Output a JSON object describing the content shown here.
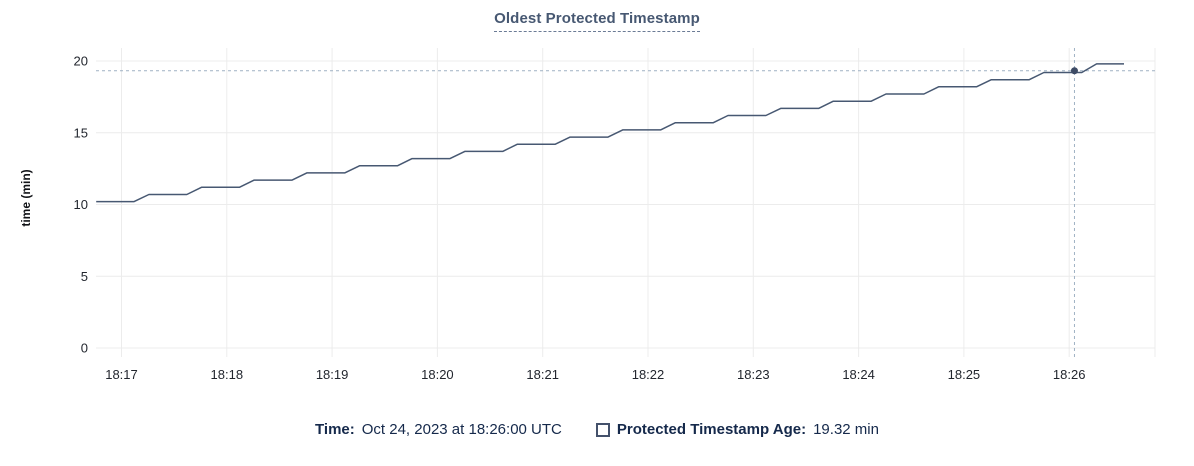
{
  "header": {
    "title": "Oldest Protected Timestamp"
  },
  "chart_data": {
    "type": "line",
    "title": "Oldest Protected Timestamp",
    "xlabel": "",
    "ylabel": "time (min)",
    "ylim": [
      0,
      20
    ],
    "yticks": [
      0,
      5,
      10,
      15,
      20
    ],
    "xtick_labels": [
      "18:17",
      "18:18",
      "18:19",
      "18:20",
      "18:21",
      "18:22",
      "18:23",
      "18:24",
      "18:25",
      "18:26"
    ],
    "grid": true,
    "legend_position": "bottom",
    "series": [
      {
        "name": "Protected Timestamp Age",
        "points_minutes_vs_min": [
          [
            -0.24,
            10.2
          ],
          [
            0.12,
            10.2
          ],
          [
            0.26,
            10.7
          ],
          [
            0.62,
            10.7
          ],
          [
            0.76,
            11.2
          ],
          [
            1.12,
            11.2
          ],
          [
            1.26,
            11.7
          ],
          [
            1.62,
            11.7
          ],
          [
            1.76,
            12.2
          ],
          [
            2.12,
            12.2
          ],
          [
            2.26,
            12.7
          ],
          [
            2.62,
            12.7
          ],
          [
            2.76,
            13.2
          ],
          [
            3.12,
            13.2
          ],
          [
            3.26,
            13.7
          ],
          [
            3.62,
            13.7
          ],
          [
            3.76,
            14.2
          ],
          [
            4.12,
            14.2
          ],
          [
            4.26,
            14.7
          ],
          [
            4.62,
            14.7
          ],
          [
            4.76,
            15.2
          ],
          [
            5.12,
            15.2
          ],
          [
            5.26,
            15.7
          ],
          [
            5.62,
            15.7
          ],
          [
            5.76,
            16.2
          ],
          [
            6.12,
            16.2
          ],
          [
            6.26,
            16.7
          ],
          [
            6.62,
            16.7
          ],
          [
            6.76,
            17.2
          ],
          [
            7.12,
            17.2
          ],
          [
            7.26,
            17.7
          ],
          [
            7.62,
            17.7
          ],
          [
            7.76,
            18.2
          ],
          [
            8.12,
            18.2
          ],
          [
            8.26,
            18.7
          ],
          [
            8.62,
            18.7
          ],
          [
            8.76,
            19.2
          ],
          [
            9.12,
            19.2
          ],
          [
            9.26,
            19.8
          ],
          [
            9.52,
            19.8
          ]
        ]
      }
    ],
    "hover_point": {
      "x_minutes": 9.05,
      "value": 19.32,
      "time_label": "Oct 24, 2023 at 18:26:00 UTC"
    }
  },
  "legend": {
    "time_label": "Time:",
    "time_value": "Oct 24, 2023 at 18:26:00 UTC",
    "series_label": "Protected Timestamp Age:",
    "series_value": "19.32 min"
  },
  "colors": {
    "line": "#475872",
    "dot": "#3e4c66",
    "grid": "#ececec",
    "crosshair": "#9fb1c3",
    "title": "#475872",
    "legend_text": "#15294b",
    "axis_text": "#22262e"
  }
}
